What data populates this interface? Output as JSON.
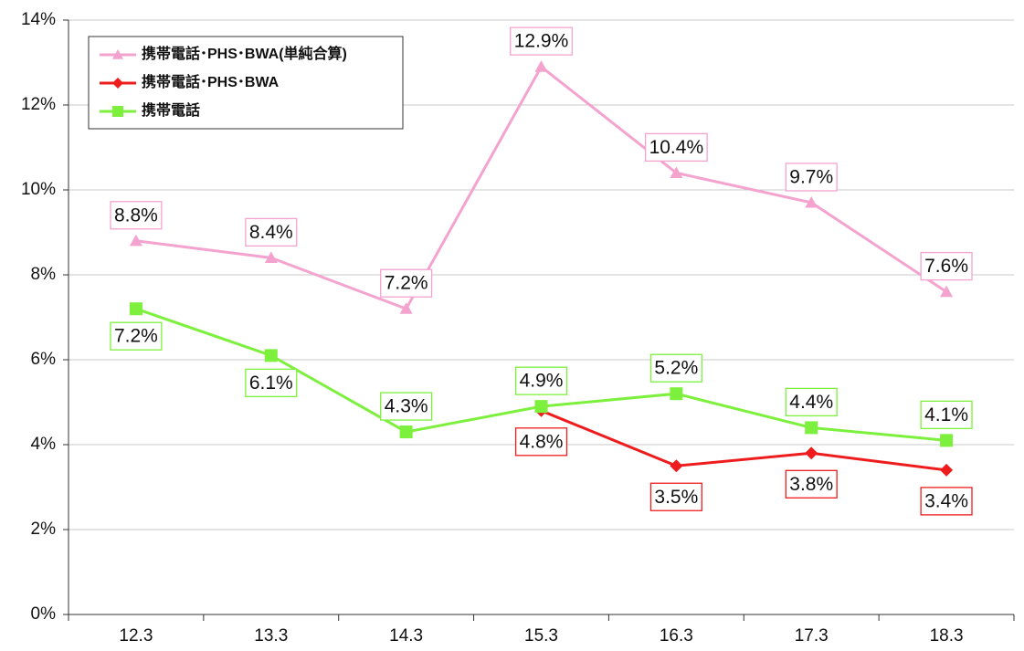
{
  "chart_data": {
    "type": "line",
    "categories": [
      "12.3",
      "13.3",
      "14.3",
      "15.3",
      "16.3",
      "17.3",
      "18.3"
    ],
    "series": [
      {
        "name": "携帯電話･PHS･BWA(単純合算)",
        "color": "#f4a3cf",
        "marker": "triangle",
        "values": [
          8.8,
          8.4,
          7.2,
          12.9,
          10.4,
          9.7,
          7.6
        ],
        "value_labels": [
          "8.8%",
          "8.4%",
          "7.2%",
          "12.9%",
          "10.4%",
          "9.7%",
          "7.6%"
        ]
      },
      {
        "name": "携帯電話･PHS･BWA",
        "color": "#ee1c1c",
        "marker": "diamond",
        "values": [
          null,
          null,
          null,
          4.8,
          3.5,
          3.8,
          3.4
        ],
        "value_labels": [
          null,
          null,
          null,
          "4.8%",
          "3.5%",
          "3.8%",
          "3.4%"
        ]
      },
      {
        "name": "携帯電話",
        "color": "#7cf03c",
        "marker": "square",
        "values": [
          7.2,
          6.1,
          4.3,
          4.9,
          5.2,
          4.4,
          4.1
        ],
        "value_labels": [
          "7.2%",
          "6.1%",
          "4.3%",
          "4.9%",
          "5.2%",
          "4.4%",
          "4.1%"
        ]
      }
    ],
    "ylim": [
      0,
      14
    ],
    "yticks": [
      {
        "value": 0,
        "label": "0%"
      },
      {
        "value": 2,
        "label": "2%"
      },
      {
        "value": 4,
        "label": "4%"
      },
      {
        "value": 6,
        "label": "6%"
      },
      {
        "value": 8,
        "label": "8%"
      },
      {
        "value": 10,
        "label": "10%"
      },
      {
        "value": 12,
        "label": "12%"
      },
      {
        "value": 14,
        "label": "14%"
      }
    ],
    "grid": true,
    "legend": "upper left"
  }
}
